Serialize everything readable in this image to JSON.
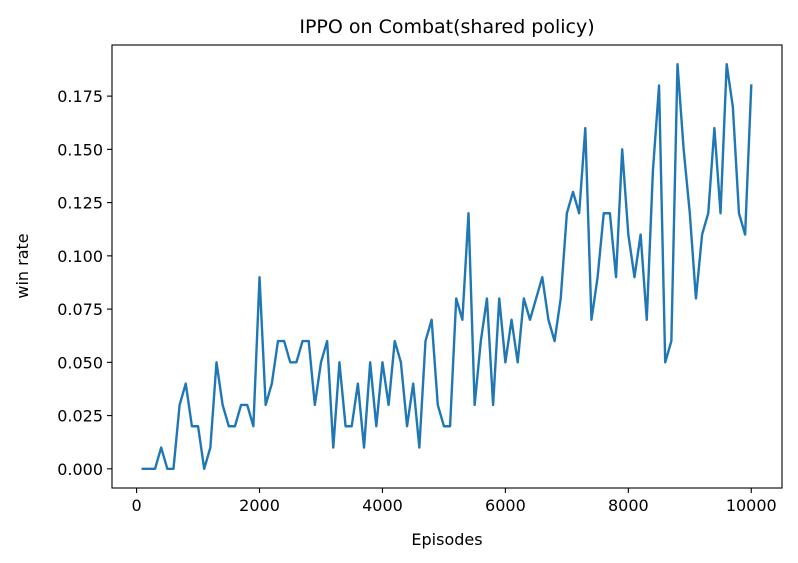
{
  "chart_data": {
    "type": "line",
    "title": "IPPO on Combat(shared policy)",
    "xlabel": "Episodes",
    "ylabel": "win rate",
    "xlim": [
      -400,
      10500
    ],
    "ylim": [
      -0.009,
      0.199
    ],
    "xticks": [
      0,
      2000,
      4000,
      6000,
      8000,
      10000
    ],
    "xtick_labels": [
      "0",
      "2000",
      "4000",
      "6000",
      "8000",
      "10000"
    ],
    "yticks": [
      0.0,
      0.025,
      0.05,
      0.075,
      0.1,
      0.125,
      0.15,
      0.175
    ],
    "ytick_labels": [
      "0.000",
      "0.025",
      "0.050",
      "0.075",
      "0.100",
      "0.125",
      "0.150",
      "0.175"
    ],
    "grid": false,
    "line_color": "#1f77b4",
    "series": [
      {
        "x": [
          100,
          200,
          300,
          400,
          500,
          600,
          700,
          800,
          900,
          1000,
          1100,
          1200,
          1300,
          1400,
          1500,
          1600,
          1700,
          1800,
          1900,
          2000,
          2100,
          2200,
          2300,
          2400,
          2500,
          2600,
          2700,
          2800,
          2900,
          3000,
          3100,
          3200,
          3300,
          3400,
          3500,
          3600,
          3700,
          3800,
          3900,
          4000,
          4100,
          4200,
          4300,
          4400,
          4500,
          4600,
          4700,
          4800,
          4900,
          5000,
          5100,
          5200,
          5300,
          5400,
          5500,
          5600,
          5700,
          5800,
          5900,
          6000,
          6100,
          6200,
          6300,
          6400,
          6500,
          6600,
          6700,
          6800,
          6900,
          7000,
          7100,
          7200,
          7300,
          7400,
          7500,
          7600,
          7700,
          7800,
          7900,
          8000,
          8100,
          8200,
          8300,
          8400,
          8500,
          8600,
          8700,
          8800,
          8900,
          9000,
          9100,
          9200,
          9300,
          9400,
          9500,
          9600,
          9700,
          9800,
          9900,
          10000
        ],
        "values": [
          0.0,
          0.0,
          0.0,
          0.01,
          0.0,
          0.0,
          0.03,
          0.04,
          0.02,
          0.02,
          0.0,
          0.01,
          0.05,
          0.03,
          0.02,
          0.02,
          0.03,
          0.03,
          0.02,
          0.09,
          0.03,
          0.04,
          0.06,
          0.06,
          0.05,
          0.05,
          0.06,
          0.06,
          0.03,
          0.05,
          0.06,
          0.01,
          0.05,
          0.02,
          0.02,
          0.04,
          0.01,
          0.05,
          0.02,
          0.05,
          0.03,
          0.06,
          0.05,
          0.02,
          0.04,
          0.01,
          0.06,
          0.07,
          0.03,
          0.02,
          0.02,
          0.08,
          0.07,
          0.12,
          0.03,
          0.06,
          0.08,
          0.03,
          0.08,
          0.05,
          0.07,
          0.05,
          0.08,
          0.07,
          0.08,
          0.09,
          0.07,
          0.06,
          0.08,
          0.12,
          0.13,
          0.12,
          0.16,
          0.07,
          0.09,
          0.12,
          0.12,
          0.09,
          0.15,
          0.11,
          0.09,
          0.11,
          0.07,
          0.14,
          0.18,
          0.05,
          0.06,
          0.19,
          0.15,
          0.12,
          0.08,
          0.11,
          0.12,
          0.16,
          0.12,
          0.19,
          0.17,
          0.12,
          0.11,
          0.18
        ]
      }
    ]
  }
}
